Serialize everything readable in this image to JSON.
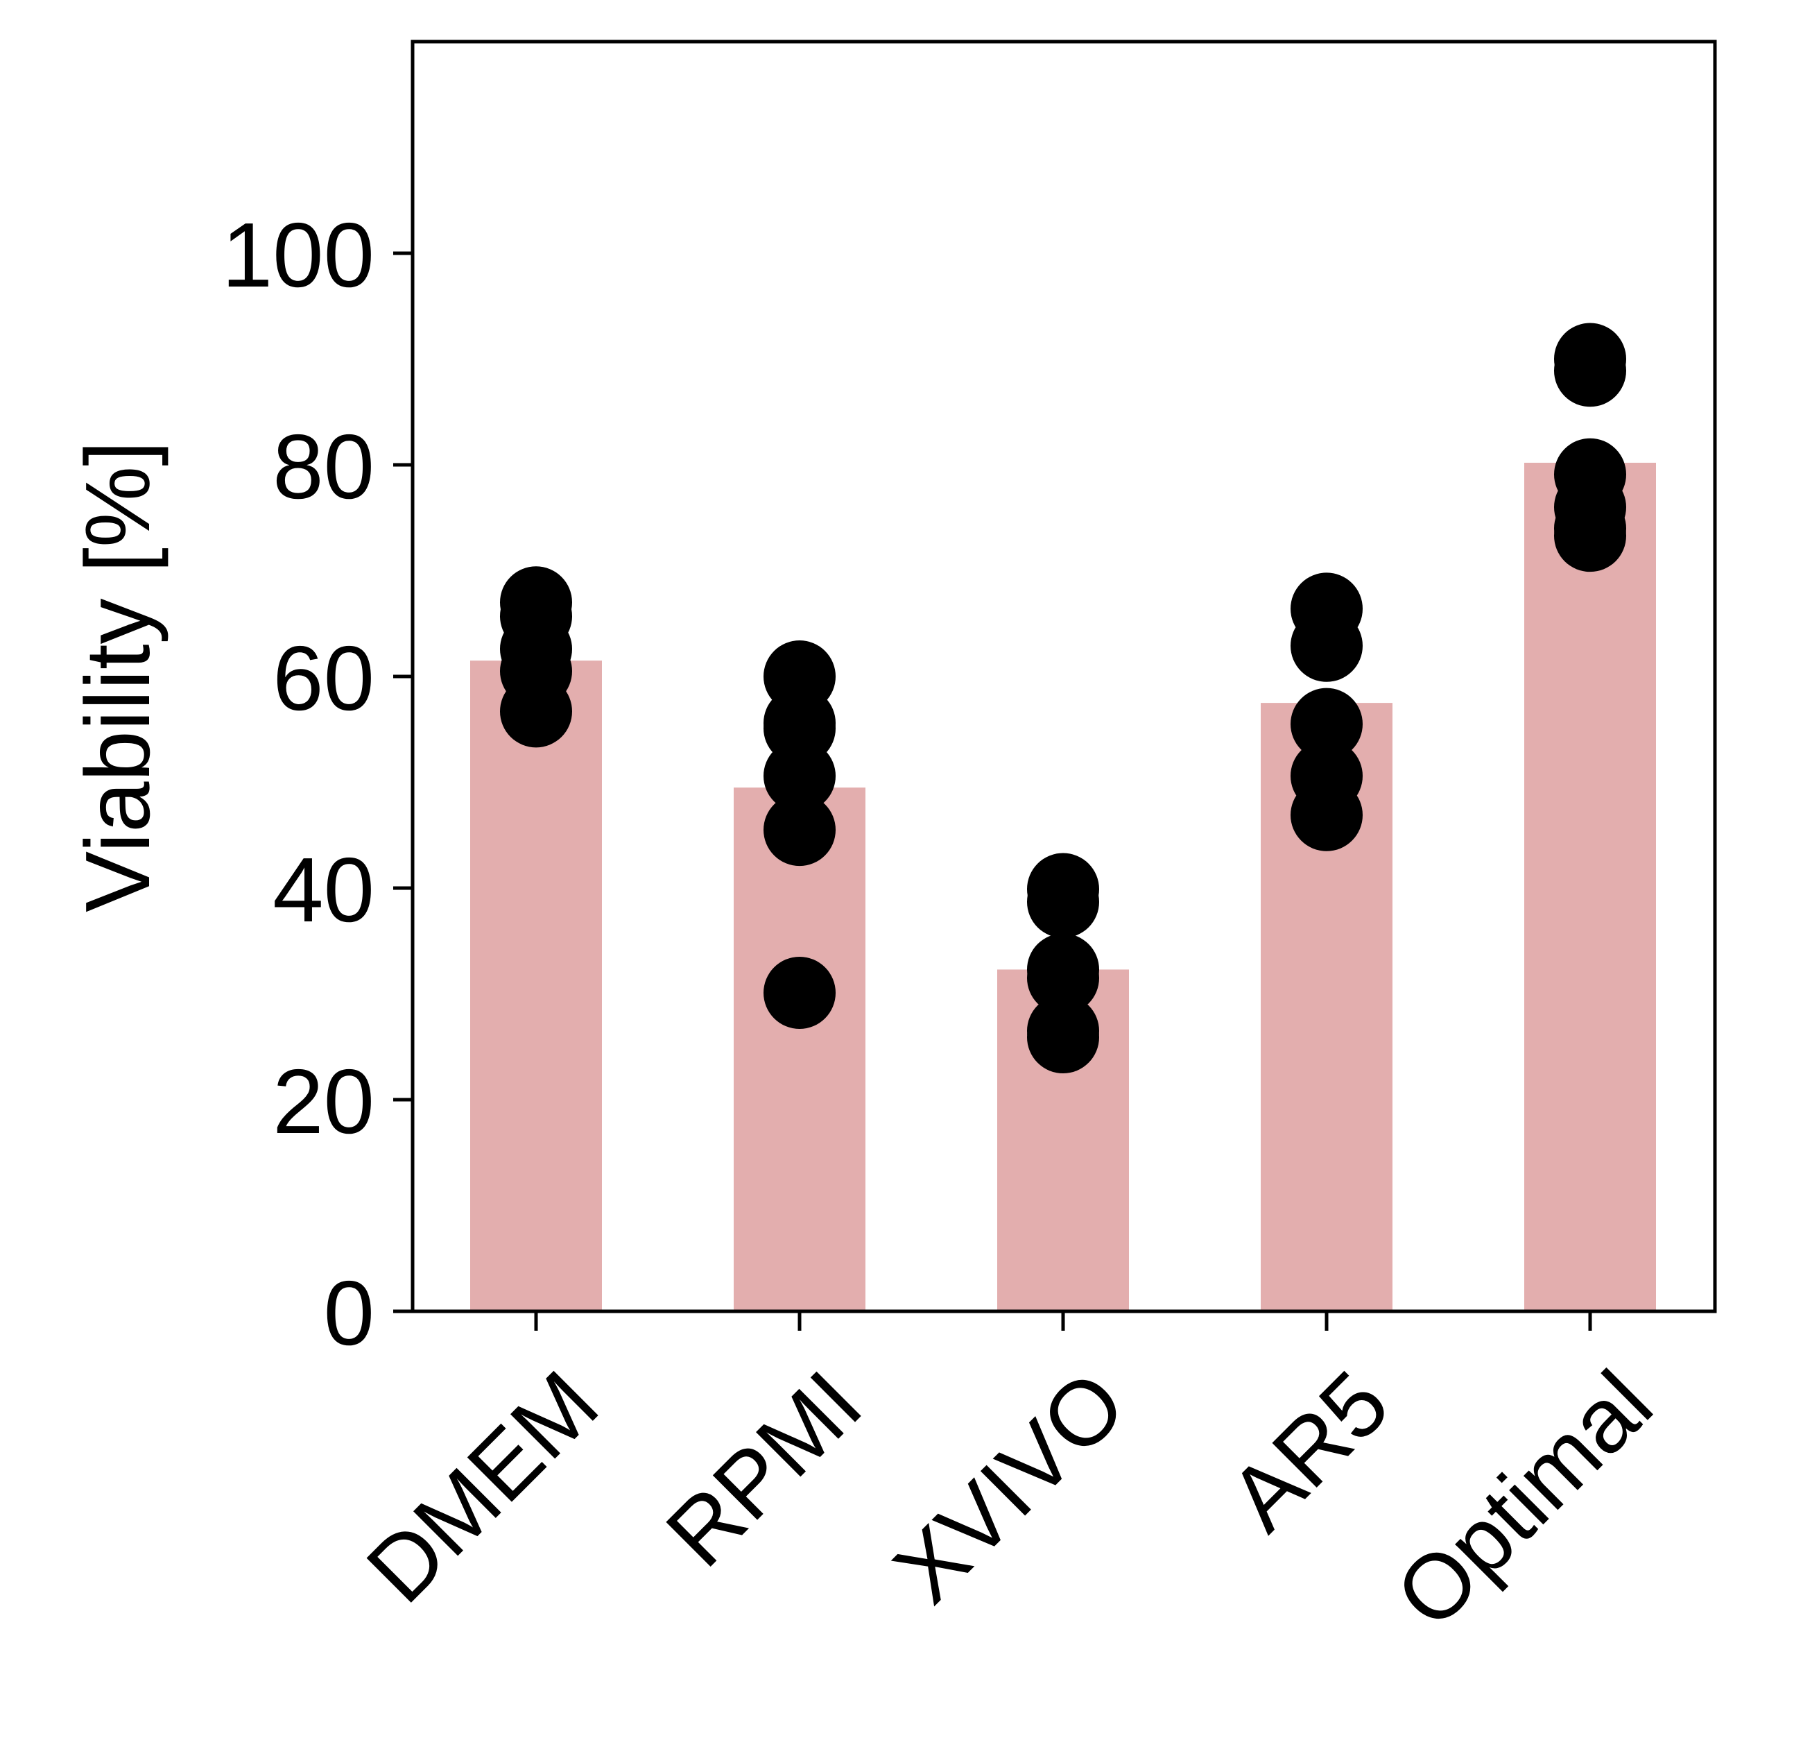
{
  "chart_data": {
    "type": "bar",
    "title": "",
    "xlabel": "",
    "ylabel": "Viability [%]",
    "ylim": [
      0,
      120
    ],
    "yticks": [
      0,
      20,
      40,
      60,
      80,
      100
    ],
    "grid": false,
    "categories": [
      "DMEM",
      "RPMI",
      "XVIVO",
      "AR5",
      "Optimal"
    ],
    "values": [
      61.5,
      49.5,
      32.3,
      57.5,
      80.2
    ],
    "bar_color": "#e3aeae",
    "point_color": "#000000",
    "points": [
      [
        56.7,
        60.5,
        62.6,
        65.7,
        67.0
      ],
      [
        30.1,
        45.5,
        50.6,
        55.1,
        55.6,
        60.0
      ],
      [
        25.9,
        26.5,
        31.5,
        32.3,
        38.7,
        39.9
      ],
      [
        46.9,
        50.6,
        55.5,
        62.9,
        66.4
      ],
      [
        73.3,
        74.0,
        76.0,
        79.1,
        88.9,
        90.0
      ]
    ]
  }
}
